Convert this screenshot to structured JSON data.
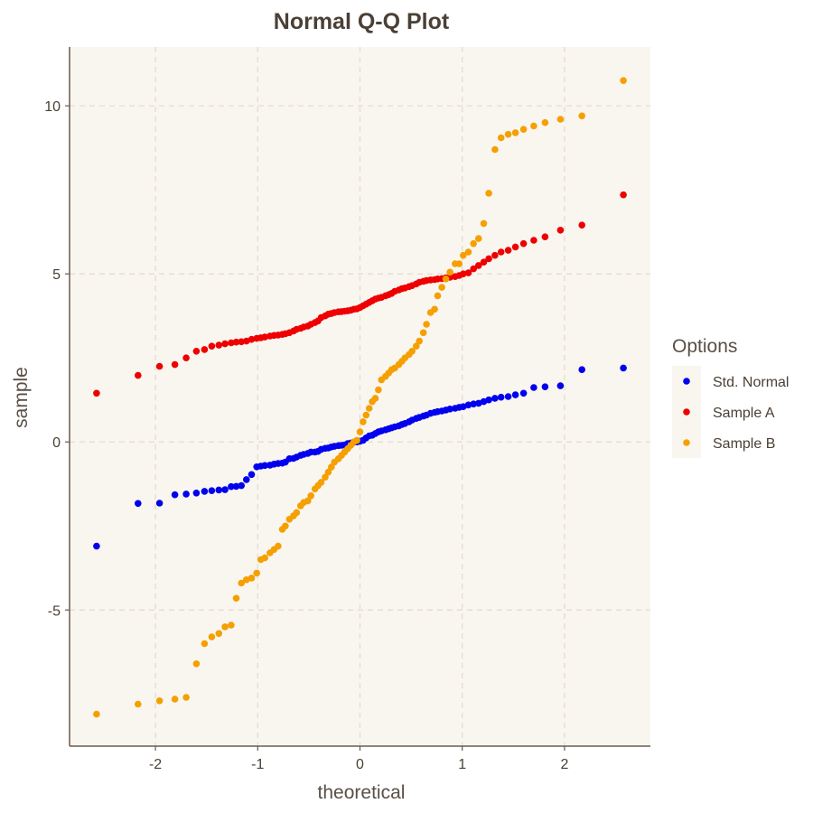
{
  "chart_data": {
    "type": "scatter",
    "title": "Normal Q-Q Plot",
    "xlabel": "theoretical",
    "ylabel": "sample",
    "xlim": [
      -2.84,
      2.84
    ],
    "ylim": [
      -9.05,
      11.75
    ],
    "xticks": [
      -2,
      -1,
      0,
      1,
      2
    ],
    "yticks": [
      -5,
      0,
      5,
      10
    ],
    "xtick_labels": [
      "-2",
      "-1",
      "0",
      "1",
      "2"
    ],
    "ytick_labels": [
      "-5",
      "0",
      "5",
      "10"
    ],
    "grid": true,
    "legend": {
      "title": "Options",
      "position": "right"
    },
    "series": [
      {
        "name": "Std. Normal",
        "color": "#0000ee",
        "x": [
          -2.576,
          -2.17,
          -1.96,
          -1.81,
          -1.7,
          -1.6,
          -1.52,
          -1.45,
          -1.38,
          -1.32,
          -1.26,
          -1.21,
          -1.16,
          -1.11,
          -1.06,
          -1.01,
          -0.97,
          -0.93,
          -0.88,
          -0.84,
          -0.8,
          -0.76,
          -0.73,
          -0.69,
          -0.65,
          -0.62,
          -0.58,
          -0.55,
          -0.51,
          -0.48,
          -0.44,
          -0.41,
          -0.38,
          -0.34,
          -0.31,
          -0.28,
          -0.25,
          -0.21,
          -0.18,
          -0.15,
          -0.12,
          -0.09,
          -0.06,
          -0.03,
          0.0,
          0.03,
          0.06,
          0.09,
          0.12,
          0.15,
          0.18,
          0.21,
          0.25,
          0.28,
          0.31,
          0.34,
          0.38,
          0.41,
          0.44,
          0.48,
          0.51,
          0.55,
          0.58,
          0.62,
          0.65,
          0.69,
          0.73,
          0.76,
          0.8,
          0.84,
          0.88,
          0.93,
          0.97,
          1.01,
          1.06,
          1.11,
          1.16,
          1.21,
          1.26,
          1.32,
          1.38,
          1.45,
          1.52,
          1.6,
          1.7,
          1.81,
          1.96,
          2.17,
          2.576
        ],
        "y": [
          -3.1,
          -1.83,
          -1.82,
          -1.57,
          -1.55,
          -1.52,
          -1.47,
          -1.45,
          -1.43,
          -1.42,
          -1.33,
          -1.32,
          -1.3,
          -1.12,
          -0.97,
          -0.74,
          -0.72,
          -0.7,
          -0.69,
          -0.66,
          -0.64,
          -0.63,
          -0.6,
          -0.5,
          -0.49,
          -0.45,
          -0.4,
          -0.37,
          -0.34,
          -0.3,
          -0.3,
          -0.28,
          -0.22,
          -0.19,
          -0.18,
          -0.15,
          -0.13,
          -0.11,
          -0.1,
          -0.09,
          -0.05,
          -0.03,
          -0.01,
          0.0,
          0.02,
          0.05,
          0.12,
          0.18,
          0.2,
          0.25,
          0.3,
          0.33,
          0.36,
          0.39,
          0.42,
          0.45,
          0.48,
          0.52,
          0.55,
          0.6,
          0.65,
          0.7,
          0.73,
          0.77,
          0.8,
          0.85,
          0.88,
          0.9,
          0.92,
          0.95,
          0.98,
          1.0,
          1.03,
          1.05,
          1.1,
          1.13,
          1.15,
          1.2,
          1.25,
          1.3,
          1.33,
          1.35,
          1.4,
          1.45,
          1.62,
          1.64,
          1.67,
          2.15,
          2.2
        ]
      },
      {
        "name": "Sample A",
        "color": "#ee0000",
        "x": [
          -2.576,
          -2.17,
          -1.96,
          -1.81,
          -1.7,
          -1.6,
          -1.52,
          -1.45,
          -1.38,
          -1.32,
          -1.26,
          -1.21,
          -1.16,
          -1.11,
          -1.06,
          -1.01,
          -0.97,
          -0.93,
          -0.88,
          -0.84,
          -0.8,
          -0.76,
          -0.73,
          -0.69,
          -0.65,
          -0.62,
          -0.58,
          -0.55,
          -0.51,
          -0.48,
          -0.44,
          -0.41,
          -0.38,
          -0.34,
          -0.31,
          -0.28,
          -0.25,
          -0.21,
          -0.18,
          -0.15,
          -0.12,
          -0.09,
          -0.06,
          -0.03,
          0.0,
          0.03,
          0.06,
          0.09,
          0.12,
          0.15,
          0.18,
          0.21,
          0.25,
          0.28,
          0.31,
          0.34,
          0.38,
          0.41,
          0.44,
          0.48,
          0.51,
          0.55,
          0.58,
          0.62,
          0.65,
          0.69,
          0.73,
          0.76,
          0.8,
          0.84,
          0.88,
          0.93,
          0.97,
          1.01,
          1.06,
          1.11,
          1.16,
          1.21,
          1.26,
          1.32,
          1.38,
          1.45,
          1.52,
          1.6,
          1.7,
          1.81,
          1.96,
          2.17,
          2.576
        ],
        "y": [
          1.45,
          1.98,
          2.25,
          2.3,
          2.5,
          2.7,
          2.75,
          2.85,
          2.88,
          2.92,
          2.95,
          2.97,
          2.98,
          3.0,
          3.05,
          3.08,
          3.1,
          3.12,
          3.15,
          3.17,
          3.18,
          3.2,
          3.22,
          3.25,
          3.3,
          3.35,
          3.38,
          3.42,
          3.45,
          3.5,
          3.55,
          3.6,
          3.7,
          3.75,
          3.8,
          3.82,
          3.85,
          3.87,
          3.88,
          3.89,
          3.9,
          3.92,
          3.95,
          3.96,
          4.0,
          4.05,
          4.1,
          4.15,
          4.2,
          4.25,
          4.28,
          4.3,
          4.35,
          4.38,
          4.42,
          4.48,
          4.52,
          4.56,
          4.58,
          4.62,
          4.65,
          4.7,
          4.75,
          4.78,
          4.8,
          4.82,
          4.83,
          4.85,
          4.86,
          4.88,
          4.9,
          4.92,
          4.95,
          5.0,
          5.03,
          5.15,
          5.25,
          5.35,
          5.45,
          5.55,
          5.65,
          5.7,
          5.8,
          5.9,
          6.0,
          6.1,
          6.3,
          6.45,
          7.35
        ]
      },
      {
        "name": "Sample B",
        "color": "#f5a000",
        "x": [
          -2.576,
          -2.17,
          -1.96,
          -1.81,
          -1.7,
          -1.6,
          -1.52,
          -1.45,
          -1.38,
          -1.32,
          -1.26,
          -1.21,
          -1.16,
          -1.11,
          -1.06,
          -1.01,
          -0.97,
          -0.93,
          -0.88,
          -0.84,
          -0.8,
          -0.76,
          -0.73,
          -0.69,
          -0.65,
          -0.62,
          -0.58,
          -0.55,
          -0.51,
          -0.48,
          -0.44,
          -0.41,
          -0.38,
          -0.34,
          -0.31,
          -0.28,
          -0.25,
          -0.21,
          -0.18,
          -0.15,
          -0.12,
          -0.09,
          -0.06,
          -0.03,
          0.0,
          0.03,
          0.06,
          0.09,
          0.12,
          0.15,
          0.18,
          0.21,
          0.25,
          0.28,
          0.31,
          0.34,
          0.38,
          0.41,
          0.44,
          0.48,
          0.51,
          0.55,
          0.58,
          0.62,
          0.65,
          0.69,
          0.73,
          0.76,
          0.8,
          0.84,
          0.88,
          0.93,
          0.97,
          1.01,
          1.06,
          1.11,
          1.16,
          1.21,
          1.26,
          1.32,
          1.38,
          1.45,
          1.52,
          1.6,
          1.7,
          1.81,
          1.96,
          2.17,
          2.576
        ],
        "y": [
          -8.1,
          -7.8,
          -7.7,
          -7.65,
          -7.6,
          -6.6,
          -6.0,
          -5.8,
          -5.7,
          -5.5,
          -5.45,
          -4.65,
          -4.2,
          -4.1,
          -4.05,
          -3.9,
          -3.5,
          -3.45,
          -3.3,
          -3.2,
          -3.1,
          -2.6,
          -2.5,
          -2.3,
          -2.2,
          -2.1,
          -1.9,
          -1.8,
          -1.75,
          -1.6,
          -1.4,
          -1.3,
          -1.2,
          -1.05,
          -0.9,
          -0.75,
          -0.6,
          -0.5,
          -0.4,
          -0.3,
          -0.2,
          -0.1,
          0.0,
          0.05,
          0.3,
          0.6,
          0.8,
          1.0,
          1.2,
          1.3,
          1.55,
          1.85,
          1.95,
          2.05,
          2.15,
          2.2,
          2.3,
          2.4,
          2.5,
          2.6,
          2.7,
          2.85,
          3.0,
          3.25,
          3.5,
          3.85,
          3.95,
          4.35,
          4.6,
          4.85,
          5.05,
          5.3,
          5.3,
          5.55,
          5.65,
          5.9,
          6.05,
          6.5,
          7.4,
          8.7,
          9.05,
          9.15,
          9.2,
          9.3,
          9.4,
          9.5,
          9.6,
          9.7,
          10.75
        ]
      }
    ]
  }
}
